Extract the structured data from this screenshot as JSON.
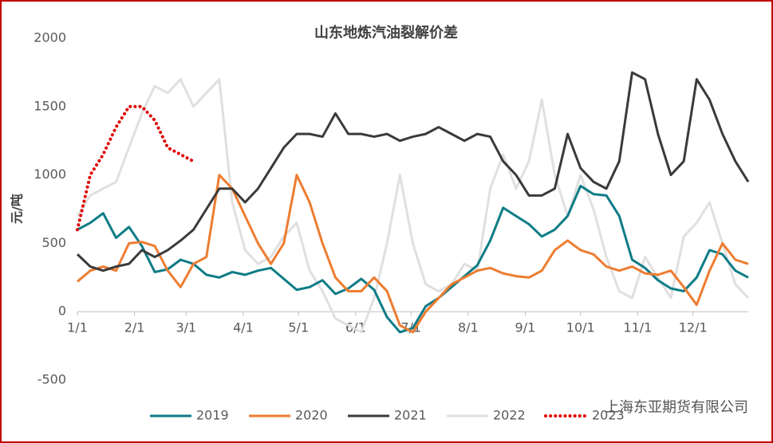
{
  "chart_data": {
    "type": "line",
    "title": "山东地炼汽油裂解价差",
    "y_label": "元/吨",
    "watermark": "上海东亚期货有限公司",
    "x": [
      0,
      7,
      14,
      21,
      28,
      35,
      42,
      49,
      56,
      63,
      70,
      77,
      84,
      91,
      98,
      105,
      112,
      119,
      126,
      133,
      140,
      147,
      154,
      161,
      168,
      175,
      182,
      189,
      196,
      203,
      210,
      217,
      224,
      231,
      238,
      245,
      252,
      259,
      266,
      273,
      280,
      287,
      294,
      301,
      308,
      315,
      322,
      329,
      336,
      343,
      350,
      357,
      364
    ],
    "xlim": [
      0,
      364
    ],
    "xticks": [
      {
        "value": 0,
        "label": "1/1"
      },
      {
        "value": 31,
        "label": "2/1"
      },
      {
        "value": 59,
        "label": "3/1"
      },
      {
        "value": 90,
        "label": "4/1"
      },
      {
        "value": 120,
        "label": "5/1"
      },
      {
        "value": 151,
        "label": "6/1"
      },
      {
        "value": 181,
        "label": "7/1"
      },
      {
        "value": 212,
        "label": "8/1"
      },
      {
        "value": 243,
        "label": "9/1"
      },
      {
        "value": 273,
        "label": "10/1"
      },
      {
        "value": 304,
        "label": "11/1"
      },
      {
        "value": 334,
        "label": "12/1"
      }
    ],
    "ylim": [
      -500,
      2000
    ],
    "yticks": [
      -500,
      0,
      500,
      1000,
      1500,
      2000
    ],
    "grid": false,
    "legend": "bottom",
    "series": [
      {
        "name": "2022",
        "color": "#e0e0e0",
        "dash": false,
        "values": [
          700,
          850,
          900,
          950,
          1200,
          1450,
          1650,
          1600,
          1700,
          1500,
          1600,
          1700,
          800,
          450,
          350,
          400,
          550,
          650,
          300,
          150,
          -50,
          -100,
          -150,
          100,
          500,
          1000,
          500,
          200,
          150,
          200,
          350,
          300,
          900,
          1150,
          900,
          1100,
          1550,
          1000,
          700,
          1000,
          750,
          400,
          150,
          100,
          400,
          250,
          100,
          550,
          650,
          800,
          500,
          200,
          100
        ]
      },
      {
        "name": "2019",
        "color": "#0e7c86",
        "dash": false,
        "values": [
          600,
          650,
          720,
          540,
          620,
          480,
          290,
          310,
          380,
          350,
          270,
          250,
          290,
          270,
          300,
          320,
          240,
          160,
          180,
          230,
          130,
          170,
          240,
          160,
          -40,
          -150,
          -120,
          40,
          100,
          180,
          260,
          340,
          520,
          760,
          700,
          640,
          550,
          600,
          700,
          920,
          860,
          850,
          700,
          380,
          320,
          230,
          170,
          150,
          250,
          450,
          420,
          300,
          250
        ]
      },
      {
        "name": "2020",
        "color": "#ed7d31",
        "dash": false,
        "values": [
          220,
          300,
          330,
          300,
          500,
          510,
          480,
          300,
          180,
          350,
          400,
          1000,
          900,
          700,
          500,
          350,
          500,
          1000,
          800,
          500,
          250,
          150,
          150,
          250,
          150,
          -100,
          -150,
          0,
          100,
          200,
          250,
          300,
          320,
          280,
          260,
          250,
          300,
          450,
          520,
          450,
          420,
          330,
          300,
          330,
          280,
          270,
          300,
          180,
          50,
          300,
          500,
          380,
          350
        ]
      },
      {
        "name": "2021",
        "color": "#3a3a3a",
        "dash": false,
        "values": [
          420,
          330,
          300,
          330,
          350,
          450,
          400,
          450,
          520,
          600,
          750,
          900,
          900,
          800,
          900,
          1050,
          1200,
          1300,
          1300,
          1280,
          1450,
          1300,
          1300,
          1280,
          1300,
          1250,
          1280,
          1300,
          1350,
          1300,
          1250,
          1300,
          1280,
          1100,
          1000,
          850,
          850,
          900,
          1300,
          1050,
          950,
          900,
          1100,
          1750,
          1700,
          1300,
          1000,
          1100,
          1700,
          1550,
          1300,
          1100,
          950
        ]
      },
      {
        "name": "2023",
        "color": "#e00000",
        "dash": true,
        "values": [
          600,
          1000,
          1150,
          1350,
          1500,
          1500,
          1400,
          1200,
          1150,
          1100,
          null,
          null,
          null,
          null,
          null,
          null,
          null,
          null,
          null,
          null,
          null,
          null,
          null,
          null,
          null,
          null,
          null,
          null,
          null,
          null,
          null,
          null,
          null,
          null,
          null,
          null,
          null,
          null,
          null,
          null,
          null,
          null,
          null,
          null,
          null,
          null,
          null,
          null,
          null,
          null,
          null,
          null,
          null
        ]
      }
    ]
  }
}
